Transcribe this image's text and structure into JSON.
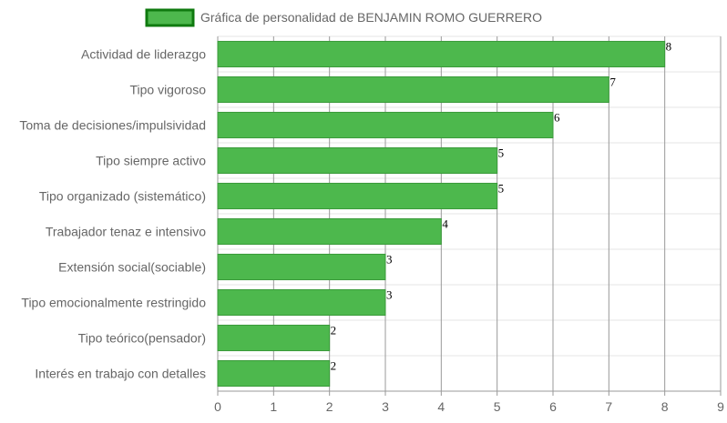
{
  "chart_data": {
    "type": "bar",
    "orientation": "horizontal",
    "categories": [
      "Actividad de liderazgo",
      "Tipo vigoroso",
      "Toma de decisiones/impulsividad",
      "Tipo siempre activo",
      "Tipo organizado (sistemático)",
      "Trabajador tenaz e intensivo",
      "Extensión social(sociable)",
      "Tipo emocionalmente restringido",
      "Tipo teórico(pensador)",
      "Interés en trabajo con detalles"
    ],
    "series": [
      {
        "name": "Gráfica de personalidad de BENJAMIN ROMO GUERRERO",
        "values": [
          8,
          7,
          6,
          5,
          5,
          4,
          3,
          3,
          2,
          2
        ]
      }
    ],
    "xlim": [
      0,
      9
    ],
    "xticks": [
      "0",
      "1",
      "2",
      "3",
      "4",
      "5",
      "6",
      "7",
      "8",
      "9"
    ],
    "grid": true,
    "legend_position": "top-center",
    "data_labels": true,
    "colors": {
      "bar_fill": "#4db84d",
      "bar_stroke": "#3a9a3a",
      "legend_box_fill": "#4db84d",
      "legend_box_stroke": "#0f7a0f",
      "grid": "#e5e5e5",
      "grid_v": "#999999",
      "axis": "#999999",
      "text": "#666666"
    }
  }
}
